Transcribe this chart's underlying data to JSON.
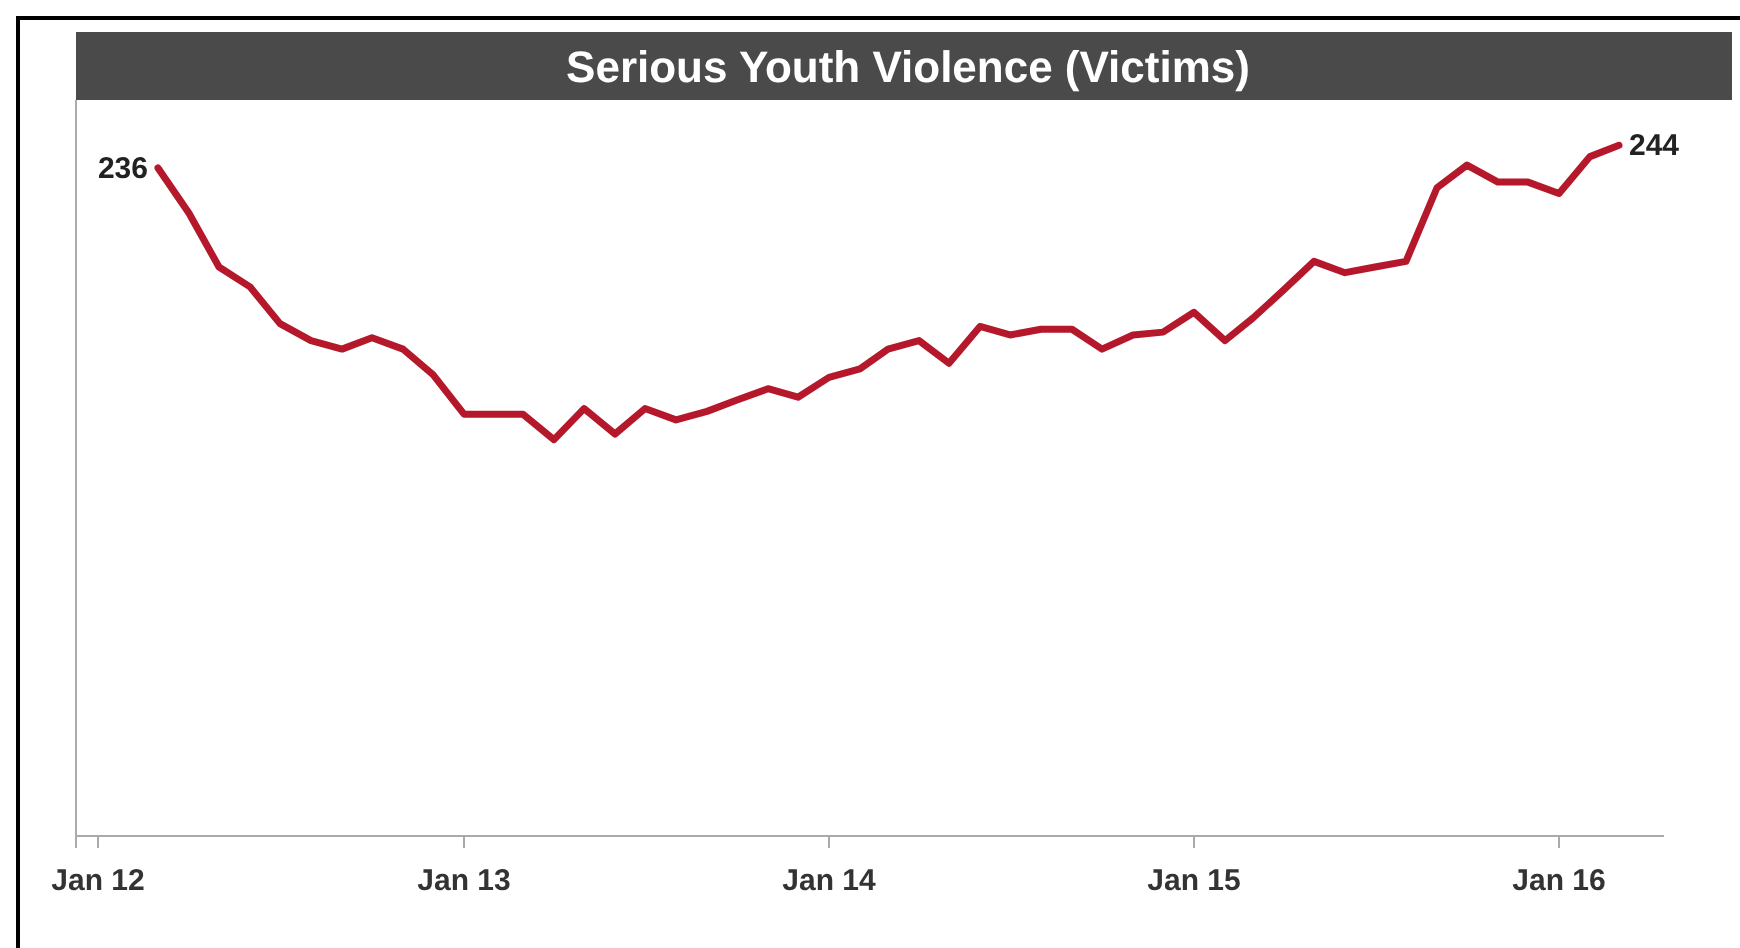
{
  "chart_data": {
    "type": "line",
    "title": "Serious Youth Violence (Victims)",
    "x": [
      "2012-03",
      "2012-04",
      "2012-05",
      "2012-06",
      "2012-07",
      "2012-08",
      "2012-09",
      "2012-10",
      "2012-11",
      "2012-12",
      "2013-01",
      "2013-02",
      "2013-03",
      "2013-04",
      "2013-05",
      "2013-06",
      "2013-07",
      "2013-08",
      "2013-09",
      "2013-10",
      "2013-11",
      "2013-12",
      "2014-01",
      "2014-02",
      "2014-03",
      "2014-04",
      "2014-05",
      "2014-06",
      "2014-07",
      "2014-08",
      "2014-09",
      "2014-10",
      "2014-11",
      "2014-12",
      "2015-01",
      "2015-02",
      "2015-03",
      "2015-04",
      "2015-05",
      "2015-06",
      "2015-07",
      "2015-08",
      "2015-09",
      "2015-10",
      "2015-11",
      "2015-12",
      "2016-01",
      "2016-02",
      "2016-03"
    ],
    "series": [
      {
        "color": "#b5172b",
        "values": [
          236,
          220,
          201,
          194,
          181,
          175,
          172,
          176,
          172,
          163,
          149,
          149,
          149,
          140,
          151,
          142,
          151,
          147,
          150,
          154,
          158,
          155,
          162,
          165,
          172,
          175,
          167,
          180,
          177,
          179,
          179,
          172,
          177,
          178,
          185,
          175,
          183,
          193,
          203,
          199,
          201,
          203,
          229,
          237,
          231,
          231,
          227,
          240,
          244
        ],
        "value_labels": [
          "236",
          null,
          null,
          null,
          null,
          null,
          null,
          null,
          null,
          null,
          null,
          null,
          null,
          null,
          null,
          null,
          null,
          null,
          null,
          null,
          null,
          null,
          null,
          null,
          null,
          null,
          null,
          null,
          null,
          null,
          null,
          null,
          null,
          null,
          null,
          null,
          null,
          null,
          null,
          null,
          null,
          null,
          null,
          null,
          null,
          null,
          null,
          null,
          "244"
        ]
      }
    ],
    "xlim": [
      "2011-12-10",
      "2016-04-15"
    ],
    "xticks": [
      {
        "value": "2012-01",
        "label": "Jan 12"
      },
      {
        "value": "2013-01",
        "label": "Jan 13"
      },
      {
        "value": "2014-01",
        "label": "Jan 14"
      },
      {
        "value": "2015-01",
        "label": "Jan 15"
      },
      {
        "value": "2016-01",
        "label": "Jan 16"
      }
    ],
    "ylim": [
      0,
      260
    ],
    "tick_labels": "x",
    "marker": "none",
    "line_style": "solid"
  }
}
